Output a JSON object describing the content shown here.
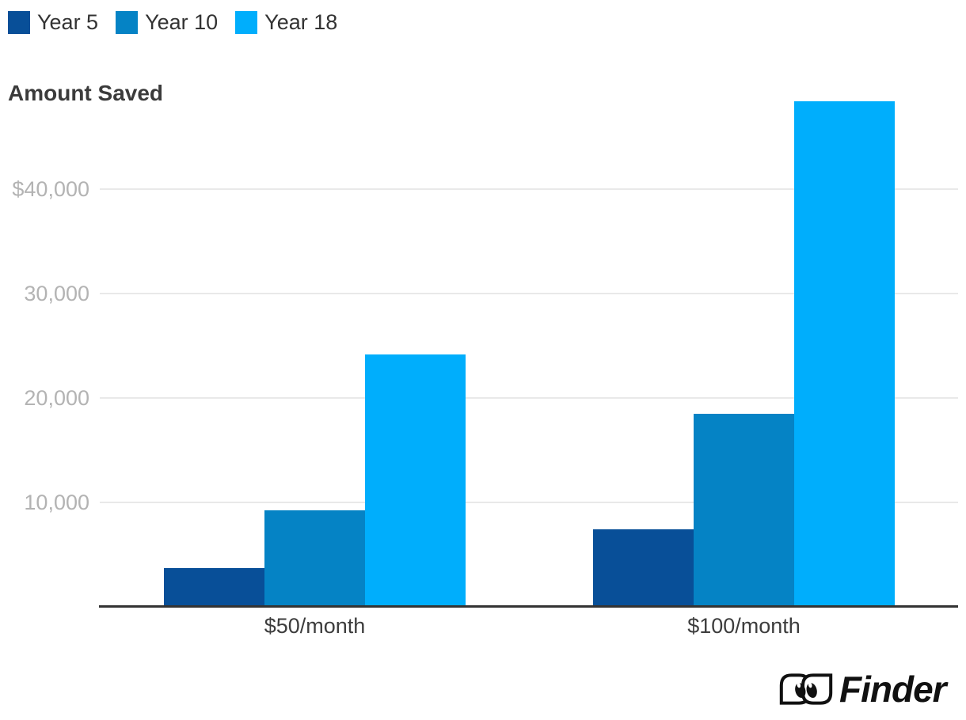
{
  "title": "Amount Saved",
  "legend": {
    "items": [
      {
        "label": "Year 5",
        "color": "#084f98"
      },
      {
        "label": "Year 10",
        "color": "#0583c5"
      },
      {
        "label": "Year 18",
        "color": "#00aefc"
      }
    ]
  },
  "chart_data": {
    "type": "bar",
    "title": "Amount Saved",
    "categories": [
      "$50/month",
      "$100/month"
    ],
    "series": [
      {
        "name": "Year 5",
        "color": "#084f98",
        "values": [
          3700,
          7400
        ]
      },
      {
        "name": "Year 10",
        "color": "#0583c5",
        "values": [
          9250,
          18450
        ]
      },
      {
        "name": "Year 18",
        "color": "#00aefc",
        "values": [
          24200,
          48400
        ]
      }
    ],
    "y_ticks": [
      {
        "value": 40000,
        "label": "$40,000"
      },
      {
        "value": 30000,
        "label": "30,000"
      },
      {
        "value": 20000,
        "label": "20,000"
      },
      {
        "value": 10000,
        "label": "10,000"
      }
    ],
    "ylim": [
      0,
      48400
    ],
    "xlabel": "",
    "ylabel": "",
    "grid": "horizontal",
    "legend_position": "top-left"
  },
  "colors": {
    "grid": "#e9e9e9",
    "axis": "#333333",
    "y_tick_text": "#b3b3b3",
    "x_label_text": "#3d3d3d",
    "title_text": "#3b3b3b",
    "logo": "#111111"
  },
  "branding": {
    "logo_text": "Finder"
  }
}
